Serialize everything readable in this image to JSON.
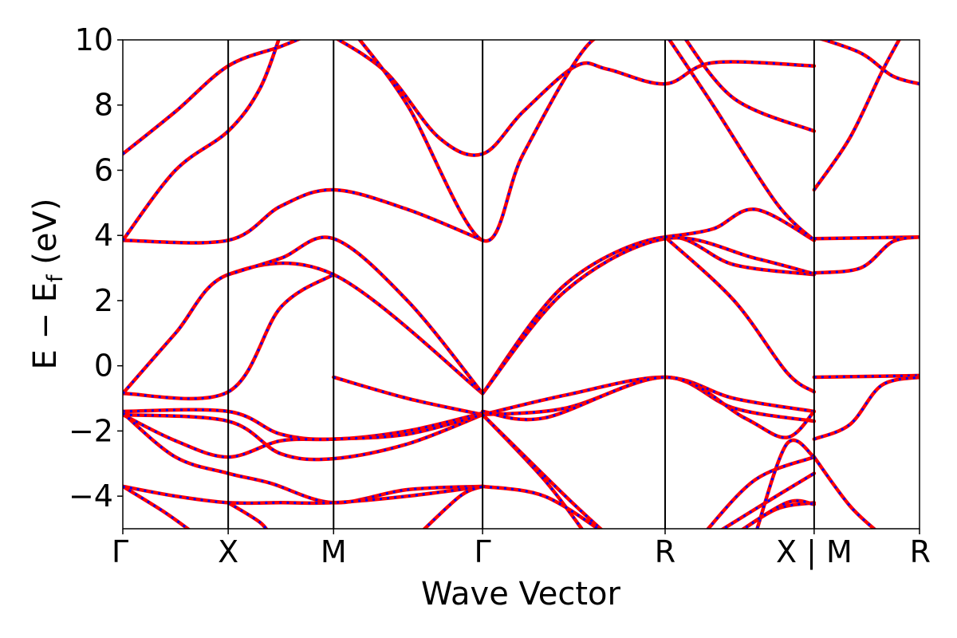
{
  "chart_data": {
    "type": "line",
    "title": "",
    "xlabel": "Wave Vector",
    "ylabel": "E − E",
    "ylabel_sub": "f",
    "ylabel_unit": " (eV)",
    "ylim": [
      -5,
      10
    ],
    "yticks": [
      10,
      8,
      6,
      4,
      2,
      0,
      -2,
      -4
    ],
    "ytick_labels": [
      "10",
      "8",
      "6",
      "4",
      "2",
      "0",
      "−2",
      "−4"
    ],
    "kpath": [
      {
        "label": "Γ",
        "k": 0.0
      },
      {
        "label": "X",
        "k": 1.0
      },
      {
        "label": "M",
        "k": 2.0
      },
      {
        "label": "Γ",
        "k": 3.414
      },
      {
        "label": "R",
        "k": 5.146
      },
      {
        "label": "X | M",
        "k": 6.56
      },
      {
        "label": "R",
        "k": 7.56
      }
    ],
    "grid": false,
    "legend": "none",
    "colors": {
      "line_main": "#ff0000",
      "line_overlay": "#0000ff",
      "axis": "#000000"
    },
    "series": [
      {
        "points": [
          [
            0,
            -0.85
          ],
          [
            1,
            -0.8
          ],
          [
            1.5,
            1.8
          ],
          [
            2,
            2.8
          ]
        ]
      },
      {
        "points": [
          [
            0,
            -0.85
          ],
          [
            0.5,
            1.0
          ],
          [
            1,
            2.8
          ],
          [
            2,
            2.8
          ],
          [
            3.414,
            -0.85
          ]
        ]
      },
      {
        "points": [
          [
            0,
            3.85
          ],
          [
            1,
            3.85
          ],
          [
            1.5,
            4.9
          ],
          [
            2,
            5.4
          ],
          [
            2.7,
            4.8
          ],
          [
            3.414,
            3.85
          ]
        ]
      },
      {
        "points": [
          [
            0,
            3.85
          ],
          [
            0.5,
            6.0
          ],
          [
            1,
            7.2
          ],
          [
            1.3,
            8.5
          ],
          [
            1.5,
            10.2
          ]
        ]
      },
      {
        "points": [
          [
            0,
            6.5
          ],
          [
            0.5,
            7.8
          ],
          [
            1,
            9.2
          ],
          [
            1.5,
            9.8
          ],
          [
            1.8,
            10.2
          ]
        ]
      },
      {
        "points": [
          [
            1,
            2.8
          ],
          [
            1.5,
            3.3
          ],
          [
            2,
            3.9
          ],
          [
            2.7,
            2.0
          ],
          [
            3.414,
            -0.85
          ]
        ]
      },
      {
        "points": [
          [
            2,
            10.1
          ],
          [
            2.5,
            9.0
          ],
          [
            3,
            7.0
          ],
          [
            3.414,
            6.5
          ],
          [
            3.8,
            7.8
          ],
          [
            4.3,
            9.2
          ],
          [
            4.6,
            9.1
          ],
          [
            5.146,
            8.65
          ],
          [
            5.6,
            9.3
          ],
          [
            6.56,
            9.2
          ]
        ]
      },
      {
        "points": [
          [
            2.2,
            10.2
          ],
          [
            2.7,
            8.0
          ],
          [
            3.414,
            3.85
          ],
          [
            3.8,
            6.5
          ],
          [
            4.4,
            9.8
          ],
          [
            4.8,
            10.3
          ]
        ]
      },
      {
        "points": [
          [
            2,
            -0.35
          ],
          [
            2.7,
            -1.0
          ],
          [
            3.414,
            -1.5
          ]
        ]
      },
      {
        "points": [
          [
            3.414,
            -0.85
          ],
          [
            4.2,
            2.5
          ],
          [
            5.146,
            3.95
          ],
          [
            5.8,
            3.1
          ],
          [
            6.56,
            2.8
          ]
        ]
      },
      {
        "points": [
          [
            3.414,
            -0.85
          ],
          [
            4.2,
            2.3
          ],
          [
            5.146,
            3.9
          ],
          [
            6.0,
            3.3
          ],
          [
            6.56,
            2.82
          ]
        ]
      },
      {
        "points": [
          [
            5.146,
            3.95
          ],
          [
            5.8,
            2.0
          ],
          [
            6.3,
            -0.2
          ],
          [
            6.56,
            -0.8
          ]
        ]
      },
      {
        "points": [
          [
            5.146,
            3.95
          ],
          [
            5.6,
            4.2
          ],
          [
            6.0,
            4.8
          ],
          [
            6.56,
            3.85
          ]
        ]
      },
      {
        "points": [
          [
            5.146,
            10.2
          ],
          [
            5.6,
            8.0
          ],
          [
            6.2,
            5.0
          ],
          [
            6.56,
            3.85
          ]
        ]
      },
      {
        "points": [
          [
            5.3,
            10.2
          ],
          [
            5.8,
            8.2
          ],
          [
            6.56,
            7.2
          ]
        ]
      },
      {
        "points": [
          [
            3.414,
            -1.5
          ],
          [
            4.2,
            -0.9
          ],
          [
            5.146,
            -0.35
          ],
          [
            5.8,
            -1.0
          ],
          [
            6.56,
            -1.4
          ]
        ]
      },
      {
        "points": [
          [
            3.414,
            -1.5
          ],
          [
            4.2,
            -1.3
          ],
          [
            5.146,
            -0.35
          ],
          [
            5.8,
            -1.3
          ],
          [
            6.56,
            -1.7
          ]
        ]
      },
      {
        "points": [
          [
            3.414,
            -1.4
          ],
          [
            4.0,
            -1.6
          ],
          [
            5.146,
            -0.35
          ],
          [
            5.9,
            -1.6
          ],
          [
            6.3,
            -2.2
          ],
          [
            6.56,
            -1.4
          ]
        ]
      },
      {
        "points": [
          [
            0,
            -1.4
          ],
          [
            1,
            -1.4
          ],
          [
            1.5,
            -2.1
          ],
          [
            2,
            -2.25
          ],
          [
            2.7,
            -2.0
          ],
          [
            3.414,
            -1.45
          ]
        ]
      },
      {
        "points": [
          [
            0,
            -1.5
          ],
          [
            1,
            -1.7
          ],
          [
            1.5,
            -2.7
          ],
          [
            2,
            -2.85
          ],
          [
            2.7,
            -2.4
          ],
          [
            3.414,
            -1.5
          ]
        ]
      },
      {
        "points": [
          [
            0,
            -1.5
          ],
          [
            0.5,
            -2.3
          ],
          [
            1,
            -2.8
          ],
          [
            1.5,
            -2.3
          ],
          [
            2,
            -2.25
          ],
          [
            2.7,
            -2.1
          ],
          [
            3.414,
            -1.5
          ]
        ]
      },
      {
        "points": [
          [
            0,
            -1.45
          ],
          [
            0.5,
            -2.8
          ],
          [
            1,
            -3.3
          ],
          [
            1.4,
            -3.6
          ],
          [
            2,
            -4.2
          ],
          [
            2.7,
            -3.8
          ],
          [
            3.414,
            -3.7
          ]
        ]
      },
      {
        "points": [
          [
            0,
            -3.7
          ],
          [
            0.5,
            -4.0
          ],
          [
            1,
            -4.2
          ],
          [
            1.5,
            -4.2
          ],
          [
            2,
            -4.2
          ],
          [
            2.7,
            -4.0
          ],
          [
            3.414,
            -3.7
          ]
        ]
      },
      {
        "points": [
          [
            0,
            -3.7
          ],
          [
            0.4,
            -4.5
          ],
          [
            0.7,
            -5.2
          ]
        ]
      },
      {
        "points": [
          [
            1,
            -4.2
          ],
          [
            1.3,
            -4.8
          ],
          [
            1.4,
            -5.2
          ]
        ]
      },
      {
        "points": [
          [
            3.414,
            -1.5
          ],
          [
            4.0,
            -3.5
          ],
          [
            4.4,
            -5.2
          ]
        ]
      },
      {
        "points": [
          [
            3.414,
            -1.5
          ],
          [
            4.2,
            -4.0
          ],
          [
            4.6,
            -5.2
          ]
        ]
      },
      {
        "points": [
          [
            3.414,
            -3.7
          ],
          [
            4.0,
            -4.0
          ],
          [
            4.6,
            -5.2
          ]
        ]
      },
      {
        "points": [
          [
            2.8,
            -5.2
          ],
          [
            3.2,
            -4.0
          ],
          [
            3.414,
            -3.7
          ]
        ]
      },
      {
        "points": [
          [
            5.5,
            -5.2
          ],
          [
            6.0,
            -3.5
          ],
          [
            6.56,
            -2.8
          ]
        ]
      },
      {
        "points": [
          [
            5.6,
            -5.2
          ],
          [
            6.1,
            -4.2
          ],
          [
            6.56,
            -3.3
          ]
        ]
      },
      {
        "points": [
          [
            5.8,
            -5.2
          ],
          [
            6.2,
            -4.4
          ],
          [
            6.56,
            -4.2
          ]
        ]
      },
      {
        "points": [
          [
            6.0,
            -5.2
          ],
          [
            6.3,
            -2.4
          ],
          [
            6.56,
            -2.8
          ]
        ]
      },
      {
        "points": [
          [
            5.8,
            -5.2
          ],
          [
            6.3,
            -4.2
          ],
          [
            6.56,
            -4.25
          ]
        ]
      },
      {
        "points": [
          [
            6.56,
            -0.35
          ],
          [
            7.56,
            -0.3
          ]
        ]
      },
      {
        "points": [
          [
            6.56,
            -2.25
          ],
          [
            6.9,
            -1.8
          ],
          [
            7.2,
            -0.6
          ],
          [
            7.56,
            -0.35
          ]
        ]
      },
      {
        "points": [
          [
            6.56,
            3.9
          ],
          [
            7.56,
            3.95
          ]
        ]
      },
      {
        "points": [
          [
            6.56,
            2.85
          ],
          [
            7.0,
            3.0
          ],
          [
            7.3,
            3.8
          ],
          [
            7.56,
            3.95
          ]
        ]
      },
      {
        "points": [
          [
            6.56,
            5.4
          ],
          [
            6.9,
            7.0
          ],
          [
            7.2,
            9.0
          ],
          [
            7.4,
            10.2
          ]
        ]
      },
      {
        "points": [
          [
            6.56,
            10.1
          ],
          [
            7.0,
            9.6
          ],
          [
            7.3,
            8.9
          ],
          [
            7.56,
            8.65
          ]
        ]
      },
      {
        "points": [
          [
            6.56,
            -2.8
          ],
          [
            6.9,
            -4.3
          ],
          [
            7.2,
            -5.2
          ]
        ]
      }
    ]
  }
}
